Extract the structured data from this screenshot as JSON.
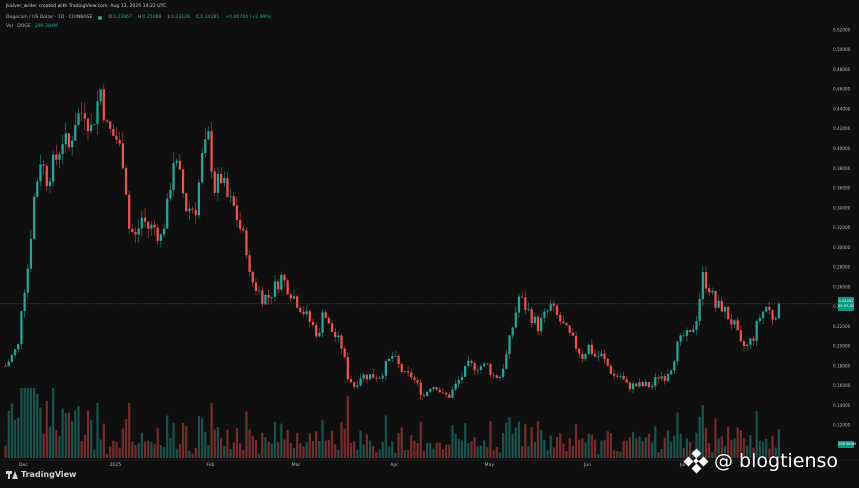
{
  "header": {
    "credit": "jkalver_writer created with TradingView.com, Aug 13, 2025 14:22 UTC",
    "symbol": "Dogecoin / US Dollar · 1D · COINBASE",
    "ohlc": [
      {
        "key": "O",
        "value": "0.23967"
      },
      {
        "key": "H",
        "value": "0.25088"
      },
      {
        "key": "L",
        "value": "0.23128"
      },
      {
        "key": "C",
        "value": "0.24281"
      }
    ],
    "change": "+0.00704 (+2.99%)",
    "vol_label": "Vol · DOGE",
    "vol_value": "298.384M"
  },
  "price_tag": {
    "price": "0.24281",
    "countdown": "09:37:02"
  },
  "vol_tag": "298.384M",
  "logo": {
    "text": "TradingView",
    "icon": "tradingview-logo-icon"
  },
  "watermark": {
    "text": "@ blogtienso",
    "icon": "binance-logo-icon"
  },
  "colors": {
    "up": "#26a69a",
    "down": "#ef5350",
    "background": "#0f0f0f",
    "price_line": "#089981"
  },
  "chart_data": {
    "type": "candlestick",
    "price_axis_ticks": [
      "0.52000",
      "0.50000",
      "0.48000",
      "0.46000",
      "0.44000",
      "0.42000",
      "0.40000",
      "0.38000",
      "0.36000",
      "0.34000",
      "0.32000",
      "0.30000",
      "0.28000",
      "0.26000",
      "0.24000",
      "0.22000",
      "0.20000",
      "0.18000",
      "0.16000",
      "0.14000",
      "0.12000"
    ],
    "ylim": [
      0.1,
      0.53
    ],
    "time_axis_labels": [
      "Dec",
      "2025",
      "Feb",
      "Mar",
      "Apr",
      "May",
      "Jun",
      "Jul"
    ],
    "time_axis_positions": [
      5,
      34,
      64,
      91,
      122,
      152,
      183,
      213
    ],
    "n_days": 260,
    "grid": false,
    "close_path": [
      [
        0,
        0.18
      ],
      [
        2,
        0.19
      ],
      [
        4,
        0.2
      ],
      [
        5,
        0.24
      ],
      [
        7,
        0.28
      ],
      [
        9,
        0.35
      ],
      [
        11,
        0.39
      ],
      [
        13,
        0.37
      ],
      [
        16,
        0.39
      ],
      [
        18,
        0.41
      ],
      [
        20,
        0.4
      ],
      [
        22,
        0.43
      ],
      [
        25,
        0.44
      ],
      [
        27,
        0.42
      ],
      [
        30,
        0.46
      ],
      [
        32,
        0.42
      ],
      [
        35,
        0.41
      ],
      [
        37,
        0.39
      ],
      [
        38,
        0.36
      ],
      [
        39,
        0.32
      ],
      [
        41,
        0.31
      ],
      [
        43,
        0.33
      ],
      [
        45,
        0.32
      ],
      [
        47,
        0.32
      ],
      [
        49,
        0.31
      ],
      [
        51,
        0.34
      ],
      [
        53,
        0.39
      ],
      [
        55,
        0.37
      ],
      [
        57,
        0.34
      ],
      [
        60,
        0.34
      ],
      [
        62,
        0.39
      ],
      [
        64,
        0.41
      ],
      [
        66,
        0.36
      ],
      [
        68,
        0.37
      ],
      [
        70,
        0.35
      ],
      [
        72,
        0.34
      ],
      [
        74,
        0.32
      ],
      [
        76,
        0.3
      ],
      [
        77,
        0.27
      ],
      [
        79,
        0.26
      ],
      [
        81,
        0.25
      ],
      [
        83,
        0.25
      ],
      [
        85,
        0.26
      ],
      [
        87,
        0.27
      ],
      [
        89,
        0.26
      ],
      [
        91,
        0.25
      ],
      [
        93,
        0.24
      ],
      [
        95,
        0.23
      ],
      [
        97,
        0.22
      ],
      [
        99,
        0.21
      ],
      [
        100,
        0.24
      ],
      [
        102,
        0.22
      ],
      [
        104,
        0.21
      ],
      [
        106,
        0.2
      ],
      [
        108,
        0.17
      ],
      [
        110,
        0.16
      ],
      [
        112,
        0.17
      ],
      [
        114,
        0.17
      ],
      [
        116,
        0.17
      ],
      [
        118,
        0.17
      ],
      [
        120,
        0.18
      ],
      [
        122,
        0.19
      ],
      [
        124,
        0.18
      ],
      [
        126,
        0.17
      ],
      [
        128,
        0.17
      ],
      [
        130,
        0.16
      ],
      [
        132,
        0.15
      ],
      [
        134,
        0.16
      ],
      [
        136,
        0.16
      ],
      [
        138,
        0.15
      ],
      [
        140,
        0.15
      ],
      [
        142,
        0.16
      ],
      [
        144,
        0.17
      ],
      [
        146,
        0.18
      ],
      [
        148,
        0.18
      ],
      [
        150,
        0.18
      ],
      [
        152,
        0.18
      ],
      [
        154,
        0.17
      ],
      [
        156,
        0.17
      ],
      [
        158,
        0.19
      ],
      [
        160,
        0.22
      ],
      [
        162,
        0.25
      ],
      [
        164,
        0.24
      ],
      [
        166,
        0.23
      ],
      [
        168,
        0.22
      ],
      [
        170,
        0.23
      ],
      [
        172,
        0.24
      ],
      [
        174,
        0.23
      ],
      [
        176,
        0.22
      ],
      [
        178,
        0.21
      ],
      [
        180,
        0.2
      ],
      [
        182,
        0.19
      ],
      [
        184,
        0.2
      ],
      [
        186,
        0.19
      ],
      [
        188,
        0.19
      ],
      [
        190,
        0.18
      ],
      [
        192,
        0.17
      ],
      [
        194,
        0.17
      ],
      [
        196,
        0.16
      ],
      [
        198,
        0.16
      ],
      [
        200,
        0.16
      ],
      [
        202,
        0.16
      ],
      [
        204,
        0.16
      ],
      [
        206,
        0.17
      ],
      [
        208,
        0.17
      ],
      [
        210,
        0.18
      ],
      [
        212,
        0.2
      ],
      [
        214,
        0.21
      ],
      [
        216,
        0.21
      ],
      [
        218,
        0.23
      ],
      [
        220,
        0.27
      ],
      [
        222,
        0.26
      ],
      [
        224,
        0.24
      ],
      [
        226,
        0.24
      ],
      [
        228,
        0.23
      ],
      [
        230,
        0.22
      ],
      [
        232,
        0.2
      ],
      [
        234,
        0.2
      ],
      [
        236,
        0.21
      ],
      [
        238,
        0.23
      ],
      [
        240,
        0.24
      ],
      [
        242,
        0.23
      ],
      [
        244,
        0.24
      ]
    ]
  }
}
